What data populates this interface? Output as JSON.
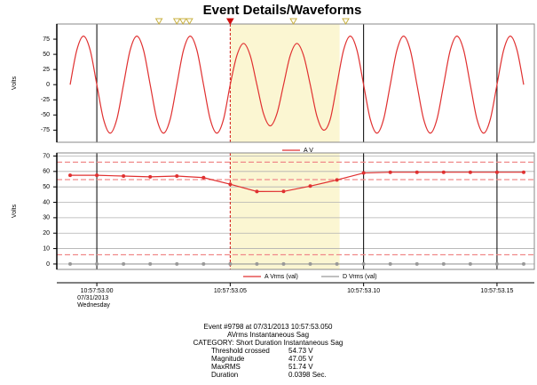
{
  "chart_data": [
    {
      "type": "line",
      "title": "Event Details/Waveforms",
      "ylabel": "Volts",
      "xlim": [
        52.985,
        53.164
      ],
      "xticks": [
        53.0,
        53.05,
        53.1,
        53.15
      ],
      "ylim": [
        -95,
        100
      ],
      "yticks": [
        75,
        50,
        25,
        0,
        -25,
        -50,
        -75
      ],
      "cursor_x": 53.05,
      "highlight": [
        53.05,
        53.091
      ],
      "event_markers": {
        "x": [
          53.0233,
          53.03,
          53.0323,
          53.0347,
          53.05,
          53.0737,
          53.0933
        ],
        "colors": [
          "#c8b040",
          "#c8b040",
          "#c8b040",
          "#c8b040",
          "#d01010",
          "#c8b040",
          "#c8b040"
        ]
      },
      "series": [
        {
          "name": "A V",
          "color": "#e03030",
          "x": [
            52.99,
            52.9925,
            52.995,
            52.9975,
            53,
            53.0025,
            53.005,
            53.0075,
            53.01,
            53.0125,
            53.015,
            53.0175,
            53.02,
            53.0225,
            53.025,
            53.0275,
            53.03,
            53.0325,
            53.035,
            53.0375,
            53.04,
            53.0425,
            53.045,
            53.0475,
            53.05,
            53.0525,
            53.055,
            53.0575,
            53.06,
            53.0625,
            53.065,
            53.0675,
            53.07,
            53.0725,
            53.075,
            53.0775,
            53.08,
            53.0825,
            53.085,
            53.0875,
            53.09,
            53.0925,
            53.095,
            53.0975,
            53.1,
            53.1025,
            53.105,
            53.1075,
            53.11,
            53.1125,
            53.115,
            53.1175,
            53.12,
            53.1225,
            53.125,
            53.1275,
            53.13,
            53.1325,
            53.135,
            53.1375,
            53.14,
            53.1425,
            53.145,
            53.1475,
            53.15,
            53.1525,
            53.155,
            53.1575,
            53.16
          ],
          "values": [
            0,
            57,
            80,
            57,
            0,
            -57,
            -80,
            -57,
            0,
            57,
            80,
            57,
            0,
            -57,
            -80,
            -57,
            0,
            57,
            80,
            57,
            0,
            -57,
            -80,
            -57,
            0,
            48,
            68,
            48,
            0,
            -48,
            -68,
            -48,
            0,
            48,
            68,
            48,
            0,
            -52,
            -75,
            -57,
            0,
            57,
            80,
            57,
            0,
            -57,
            -80,
            -57,
            0,
            57,
            80,
            57,
            0,
            -57,
            -80,
            -57,
            0,
            57,
            80,
            57,
            0,
            -57,
            -80,
            -57,
            0,
            57,
            80,
            57,
            0
          ]
        }
      ]
    },
    {
      "type": "line",
      "ylabel": "Volts",
      "xlim": [
        52.985,
        53.164
      ],
      "xticks": [
        {
          "value": 53.0,
          "label": "10:57:53.00"
        },
        {
          "value": 53.05,
          "label": "10:57:53.05"
        },
        {
          "value": 53.1,
          "label": "10:57:53.10"
        },
        {
          "value": 53.15,
          "label": "10:57:53.15"
        }
      ],
      "first_tick_sublabels": [
        "07/31/2013",
        "Wednesday"
      ],
      "ylim": [
        -3.5,
        72
      ],
      "yticks": [
        0,
        10,
        20,
        30,
        40,
        50,
        60,
        70
      ],
      "grid": true,
      "reference_lines": {
        "values": [
          66,
          54.7,
          6
        ],
        "color": "#f08a8a"
      },
      "cursor_x": 53.05,
      "highlight": [
        53.05,
        53.091
      ],
      "series": [
        {
          "name": "A Vrms (val)",
          "color": "#e03030",
          "x": [
            52.99,
            53.0,
            53.01,
            53.02,
            53.03,
            53.04,
            53.05,
            53.06,
            53.07,
            53.08,
            53.09,
            53.1,
            53.11,
            53.12,
            53.13,
            53.14,
            53.15,
            53.16
          ],
          "values": [
            57.5,
            57.5,
            57,
            56.5,
            57,
            56,
            51.7,
            47,
            47.05,
            50.5,
            54.5,
            59,
            59.5,
            59.5,
            59.5,
            59.5,
            59.5,
            59.5
          ]
        },
        {
          "name": "D Vrms (val)",
          "color": "#999999",
          "x": [
            52.99,
            53.0,
            53.01,
            53.02,
            53.03,
            53.04,
            53.05,
            53.06,
            53.07,
            53.08,
            53.09,
            53.1,
            53.11,
            53.12,
            53.13,
            53.14,
            53.15,
            53.16
          ],
          "values": [
            0,
            0,
            0,
            0,
            0,
            0,
            0,
            0,
            0,
            0,
            0,
            0,
            0,
            0,
            0,
            0,
            0,
            0
          ]
        }
      ]
    }
  ],
  "event_info": {
    "heading": "Event #9798 at 07/31/2013 10:57:53.050",
    "subheading": "AVrms Instantaneous Sag",
    "category": "CATEGORY: Short Duration Instantaneous Sag",
    "rows": [
      [
        "Threshold crossed",
        "54.73 V"
      ],
      [
        "Magnitude",
        "47.05 V"
      ],
      [
        "MaxRMS",
        "51.74 V"
      ],
      [
        "Duration",
        "0.0398 Sec."
      ]
    ]
  }
}
